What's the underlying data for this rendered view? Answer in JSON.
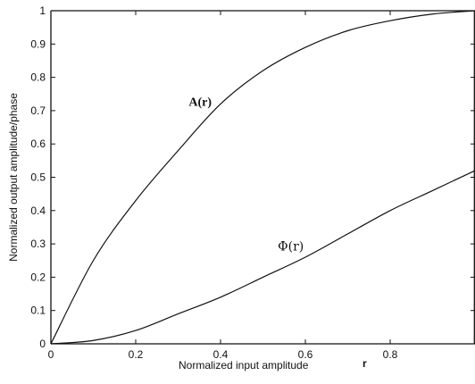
{
  "chart_data": {
    "type": "line",
    "title": "",
    "xlabel": "Normalized input amplitude",
    "xlabel_symbol": "r",
    "ylabel": "Normalized output amplitude/phase",
    "xlim": [
      0,
      1
    ],
    "ylim": [
      0,
      1
    ],
    "xticks": [
      "0",
      "0.2",
      "0.4",
      "0.6",
      "0.8"
    ],
    "yticks": [
      "0",
      "0.1",
      "0.2",
      "0.3",
      "0.4",
      "0.5",
      "0.6",
      "0.7",
      "0.8",
      "0.9",
      "1"
    ],
    "grid": false,
    "x": [
      0,
      0.1,
      0.2,
      0.3,
      0.4,
      0.5,
      0.6,
      0.7,
      0.8,
      0.9,
      1.0
    ],
    "series": [
      {
        "name": "A(r)",
        "values": [
          0,
          0.25,
          0.43,
          0.58,
          0.72,
          0.82,
          0.89,
          0.94,
          0.97,
          0.99,
          1.0
        ]
      },
      {
        "name": "Φ(r)",
        "values": [
          0,
          0.01,
          0.04,
          0.09,
          0.14,
          0.2,
          0.26,
          0.33,
          0.4,
          0.46,
          0.52
        ]
      }
    ]
  }
}
